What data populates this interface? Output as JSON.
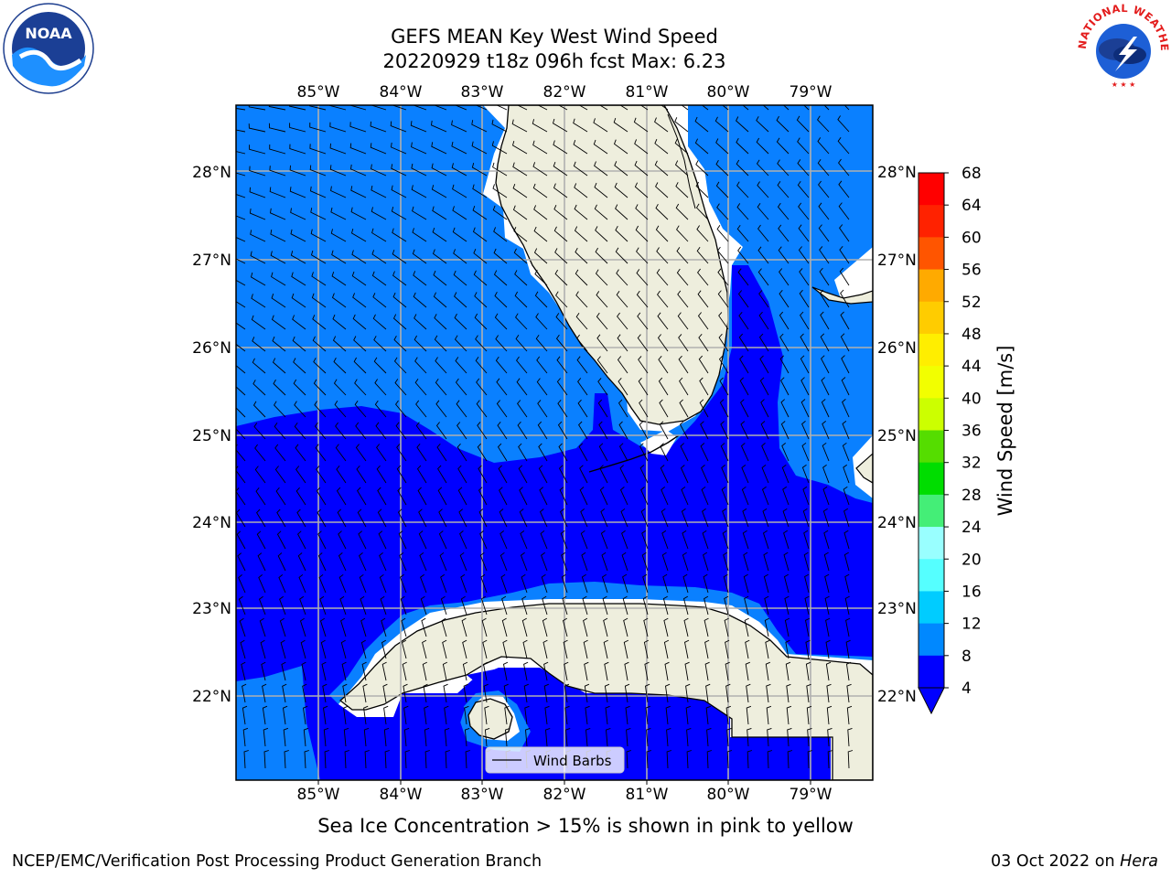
{
  "header": {
    "title_line1": "GEFS MEAN Key West Wind Speed",
    "title_line2": "20220929 t18z 096h fcst   Max: 6.23"
  },
  "logos": {
    "left": {
      "icon": "noaa-logo",
      "text": "NOAA"
    },
    "right": {
      "icon": "nws-logo",
      "text": "NATIONAL WEATHER SERVICE"
    }
  },
  "map": {
    "lon_labels": [
      "85°W",
      "84°W",
      "83°W",
      "82°W",
      "81°W",
      "80°W",
      "79°W"
    ],
    "lat_labels": [
      "28°N",
      "27°N",
      "26°N",
      "25°N",
      "24°N",
      "23°N",
      "22°N"
    ],
    "legend_label": "Wind Barbs",
    "colors": {
      "land": "#eeeedd",
      "speed_4_8": "#0000ff",
      "speed_lt_4": "#0a80ff",
      "masked": "#ffffff"
    }
  },
  "colorbar": {
    "label": "Wind Speed [m/s]",
    "ticks": [
      "68",
      "64",
      "60",
      "56",
      "52",
      "48",
      "44",
      "40",
      "36",
      "32",
      "28",
      "24",
      "20",
      "16",
      "12",
      "8",
      "4"
    ],
    "colors": [
      "#ff0000",
      "#ff2200",
      "#ff5500",
      "#ff8800",
      "#ffaa00",
      "#ffcc00",
      "#ffee00",
      "#f2ff00",
      "#ccff00",
      "#a5ee00",
      "#55dd00",
      "#00dd00",
      "#44ee77",
      "#99ffff",
      "#55ffff",
      "#00ffff",
      "#00ccff",
      "#0088ff",
      "#0000ff"
    ]
  },
  "footer": {
    "note": "Sea Ice Concentration > 15% is shown in pink to yellow",
    "credit": "NCEP/EMC/Verification Post Processing Product Generation Branch",
    "date": "03 Oct 2022",
    "on_word": "on",
    "machine": "Hera"
  }
}
